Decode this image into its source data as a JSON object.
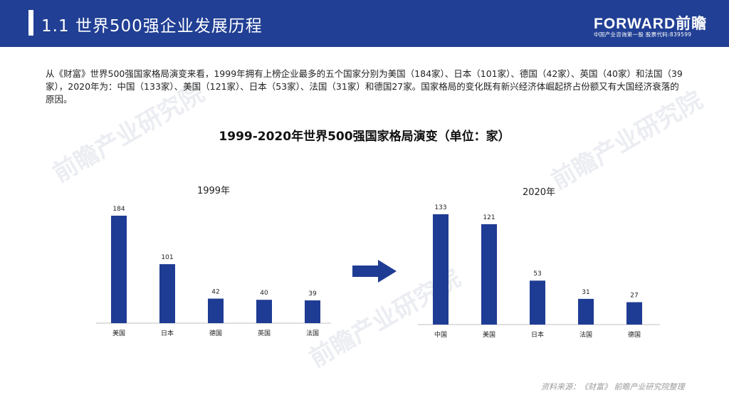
{
  "header": {
    "title": "1.1 世界500强企业发展历程",
    "logo": "FORWARD前瞻",
    "logo_sub": "中国产业咨询第一股 股票代码:839599"
  },
  "intro": "从《财富》世界500强国家格局演变来看，1999年拥有上榜企业最多的五个国家分别为美国（184家）、日本（101家）、德国（42家）、英国（40家）和法国（39家），2020年为：中国（133家）、美国（121家）、日本（53家）、法国（31家）和德国27家。国家格局的变化既有新兴经济体崛起挤占份额又有大国经济衰落的原因。",
  "main_title": "1999-2020年世界500强国家格局演变（单位：家）",
  "source": "资料来源：《财富》 前瞻产业研究院整理",
  "watermarks": [
    "前瞻产业研究院",
    "前瞻产业研究院",
    "前瞻产业研究院"
  ],
  "colors": {
    "header": "#213f94",
    "bar": "#1f3c94",
    "arrow": "#1f3c94"
  },
  "chart_data": [
    {
      "type": "bar",
      "title": "1999年",
      "categories": [
        "美国",
        "日本",
        "德国",
        "英国",
        "法国"
      ],
      "values": [
        184,
        101,
        42,
        40,
        39
      ],
      "ylim": [
        0,
        184
      ]
    },
    {
      "type": "bar",
      "title": "2020年",
      "categories": [
        "中国",
        "美国",
        "日本",
        "法国",
        "德国"
      ],
      "values": [
        133,
        121,
        53,
        31,
        27
      ],
      "ylim": [
        0,
        133
      ]
    }
  ]
}
